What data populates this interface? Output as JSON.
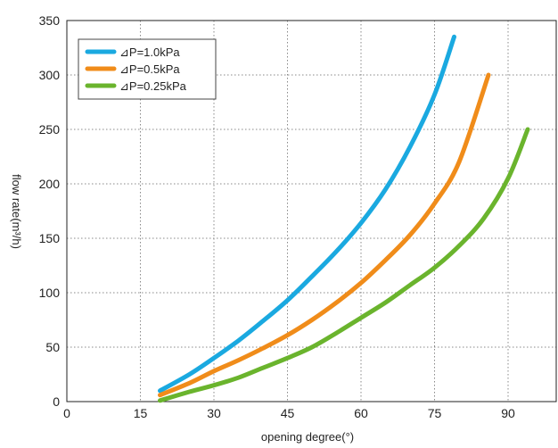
{
  "chart_data": {
    "type": "line",
    "title": "",
    "xlabel": "opening degree(°)",
    "ylabel": "flow rate(m³/h)",
    "xlim": [
      0,
      100
    ],
    "ylim": [
      0,
      350
    ],
    "xticks": [
      "0",
      "15",
      "30",
      "45",
      "60",
      "75",
      "90"
    ],
    "yticks": [
      "0",
      "50",
      "100",
      "150",
      "200",
      "250",
      "300",
      "350"
    ],
    "grid": true,
    "legend_position": "top-left",
    "series": [
      {
        "name": "⊿P=1.0kPa",
        "color": "#1aa9e0",
        "x": [
          19,
          25,
          30,
          35,
          40,
          45,
          50,
          55,
          60,
          65,
          70,
          75,
          79
        ],
        "y": [
          10,
          25,
          40,
          56,
          74,
          93,
          115,
          138,
          164,
          195,
          234,
          282,
          335
        ]
      },
      {
        "name": "⊿P=0.5kPa",
        "color": "#f08c1a",
        "x": [
          19,
          25,
          30,
          35,
          40,
          45,
          50,
          55,
          60,
          65,
          70,
          75,
          80,
          86
        ],
        "y": [
          6,
          17,
          28,
          38,
          49,
          61,
          75,
          91,
          109,
          130,
          153,
          182,
          220,
          300
        ]
      },
      {
        "name": "⊿P=0.25kPa",
        "color": "#6ab42d",
        "x": [
          19,
          25,
          30,
          35,
          40,
          45,
          50,
          55,
          60,
          65,
          70,
          75,
          80,
          85,
          90,
          94
        ],
        "y": [
          1,
          9,
          15,
          22,
          31,
          40,
          50,
          63,
          77,
          91,
          107,
          123,
          143,
          168,
          205,
          250
        ]
      }
    ]
  }
}
